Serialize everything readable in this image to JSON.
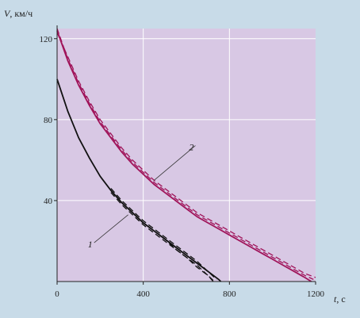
{
  "colors": {
    "page_bg": "#c8dbe8",
    "plot_bg": "#d8c8e4",
    "series_1": "#111111",
    "series_2": "#a0145a",
    "grid": "#ffffff",
    "axis": "#222222"
  },
  "chart_data": {
    "type": "line",
    "title": "",
    "xlabel": {
      "var": "t",
      "unit": ", с"
    },
    "ylabel": {
      "var": "V",
      "unit": ", км/ч"
    },
    "xlim": [
      0,
      1200
    ],
    "ylim": [
      0,
      125
    ],
    "xticks": [
      0,
      400,
      800,
      1200
    ],
    "yticks": [
      40,
      80,
      120
    ],
    "x_tick_labels": [
      "0",
      "400",
      "800",
      "1200"
    ],
    "y_tick_labels": [
      "40",
      "80",
      "120"
    ],
    "grid": true,
    "legend": "none",
    "series": [
      {
        "label": "1",
        "style": "solid",
        "color_key": "series_1",
        "points": [
          [
            0,
            100
          ],
          [
            50,
            84
          ],
          [
            100,
            71
          ],
          [
            150,
            61
          ],
          [
            200,
            52
          ],
          [
            250,
            45
          ],
          [
            300,
            39
          ],
          [
            350,
            34
          ],
          [
            400,
            29
          ],
          [
            450,
            25
          ],
          [
            500,
            21
          ],
          [
            550,
            17
          ],
          [
            600,
            13
          ],
          [
            650,
            9
          ],
          [
            700,
            5
          ],
          [
            750,
            1
          ],
          [
            760,
            0
          ]
        ]
      },
      {
        "label": "1",
        "style": "dashed",
        "color_key": "series_1",
        "points": [
          [
            250,
            46
          ],
          [
            300,
            40
          ],
          [
            350,
            35
          ],
          [
            400,
            30
          ],
          [
            450,
            26
          ],
          [
            500,
            22
          ],
          [
            550,
            18
          ],
          [
            600,
            14
          ],
          [
            650,
            10
          ],
          [
            700,
            5
          ],
          [
            740,
            1
          ]
        ]
      },
      {
        "label": "1",
        "style": "dashed",
        "color_key": "series_1",
        "points": [
          [
            250,
            44
          ],
          [
            300,
            38
          ],
          [
            350,
            33
          ],
          [
            400,
            28
          ],
          [
            450,
            24
          ],
          [
            500,
            20
          ],
          [
            550,
            16
          ],
          [
            600,
            12
          ],
          [
            650,
            8
          ],
          [
            700,
            3
          ],
          [
            725,
            0
          ]
        ]
      },
      {
        "label": "1",
        "style": "dashed",
        "color_key": "series_1",
        "points": [
          [
            250,
            45
          ],
          [
            300,
            39
          ],
          [
            350,
            34
          ],
          [
            400,
            29
          ],
          [
            450,
            25
          ],
          [
            500,
            21
          ],
          [
            550,
            16
          ],
          [
            600,
            12
          ],
          [
            650,
            7
          ],
          [
            700,
            3
          ],
          [
            730,
            0
          ]
        ]
      },
      {
        "label": "2",
        "style": "solid",
        "color_key": "series_2",
        "points": [
          [
            0,
            124
          ],
          [
            50,
            109
          ],
          [
            100,
            97
          ],
          [
            150,
            87
          ],
          [
            200,
            78
          ],
          [
            250,
            71
          ],
          [
            300,
            64
          ],
          [
            350,
            58
          ],
          [
            400,
            53
          ],
          [
            450,
            48
          ],
          [
            500,
            44
          ],
          [
            550,
            40
          ],
          [
            600,
            36
          ],
          [
            650,
            32
          ],
          [
            700,
            29
          ],
          [
            750,
            26
          ],
          [
            800,
            23
          ],
          [
            850,
            20
          ],
          [
            900,
            17
          ],
          [
            950,
            14
          ],
          [
            1000,
            11
          ],
          [
            1050,
            8
          ],
          [
            1100,
            5
          ],
          [
            1150,
            2
          ],
          [
            1180,
            0
          ]
        ]
      },
      {
        "label": "2",
        "style": "dashed",
        "color_key": "series_2",
        "points": [
          [
            0,
            123
          ],
          [
            50,
            111
          ],
          [
            100,
            99
          ],
          [
            150,
            89
          ],
          [
            200,
            80
          ],
          [
            250,
            73
          ],
          [
            300,
            66
          ],
          [
            350,
            60
          ],
          [
            400,
            55
          ],
          [
            450,
            50
          ],
          [
            500,
            46
          ],
          [
            550,
            42
          ],
          [
            600,
            38
          ],
          [
            650,
            34
          ],
          [
            700,
            31
          ],
          [
            750,
            28
          ],
          [
            800,
            25
          ],
          [
            850,
            22
          ],
          [
            900,
            19
          ],
          [
            950,
            16
          ],
          [
            1000,
            13
          ],
          [
            1050,
            10
          ],
          [
            1100,
            7
          ],
          [
            1150,
            4
          ],
          [
            1200,
            2
          ]
        ]
      },
      {
        "label": "2",
        "style": "dashed",
        "color_key": "series_2",
        "points": [
          [
            0,
            125
          ],
          [
            50,
            110
          ],
          [
            100,
            98
          ],
          [
            150,
            88
          ],
          [
            200,
            79
          ],
          [
            250,
            72
          ],
          [
            300,
            65
          ],
          [
            350,
            59
          ],
          [
            400,
            54
          ],
          [
            450,
            49
          ],
          [
            500,
            45
          ],
          [
            550,
            41
          ],
          [
            600,
            37
          ],
          [
            650,
            33
          ],
          [
            700,
            30
          ],
          [
            750,
            27
          ],
          [
            800,
            24
          ],
          [
            850,
            21
          ],
          [
            900,
            18
          ],
          [
            950,
            15
          ],
          [
            1000,
            12
          ],
          [
            1050,
            9
          ],
          [
            1100,
            6
          ],
          [
            1150,
            3
          ],
          [
            1190,
            1
          ]
        ]
      }
    ],
    "annotations": [
      {
        "text": "1",
        "series_color_key": "series_1",
        "label_at": [
          150,
          18
        ],
        "points_to": [
          330,
          33
        ]
      },
      {
        "text": "2",
        "series_color_key": "series_2",
        "label_at": [
          620,
          66
        ],
        "points_to": [
          450,
          50
        ]
      }
    ]
  }
}
